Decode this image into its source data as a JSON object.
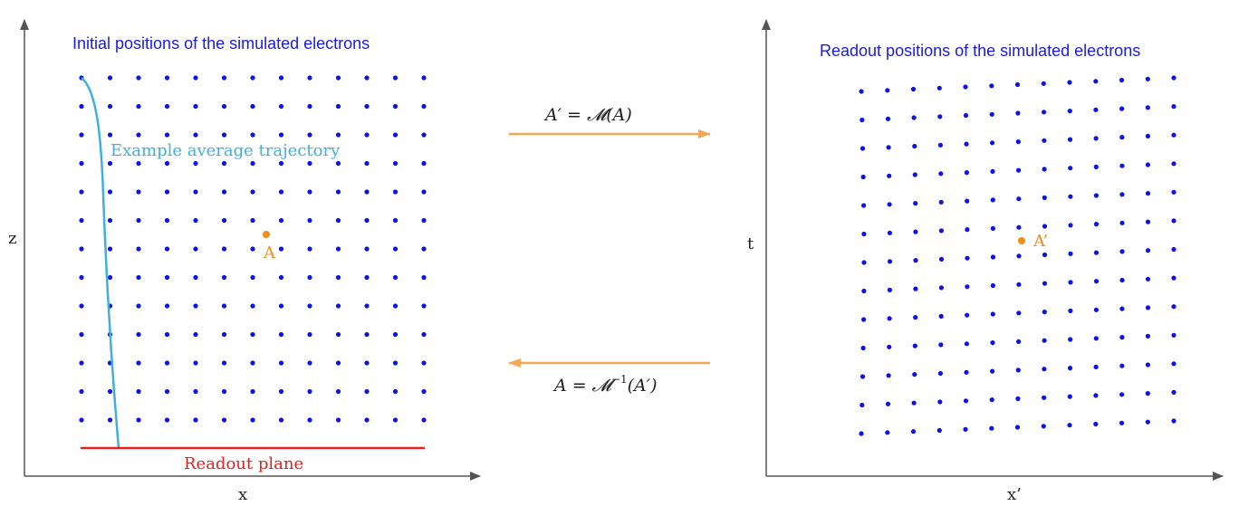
{
  "colors": {
    "axis": "#555555",
    "dots": "#0a14e6",
    "title": "#1a1ae6",
    "trajectory": "#3fb0dc",
    "point": "#f28c1a",
    "arrow": "#f5a854",
    "readout": "#e61e1e",
    "text": "#222222"
  },
  "left_panel": {
    "title": "Initial positions of the simulated electrons",
    "x_label": "x",
    "y_label": "z",
    "trajectory_label": "Example average trajectory",
    "readout_label": "Readout plane",
    "point_label": "A"
  },
  "right_panel": {
    "title": "Readout positions of the simulated electrons",
    "x_label": "x’",
    "y_label": "t",
    "point_label": "A’"
  },
  "mapping": {
    "forward_lhs": "A′",
    "forward_rhs": "𝓜(A)",
    "inverse_lhs": "A",
    "inverse_rhs": "𝓜",
    "inverse_exp": "−1",
    "inverse_arg": "(A′)"
  },
  "grid": {
    "columns": 13,
    "rows": 13
  }
}
